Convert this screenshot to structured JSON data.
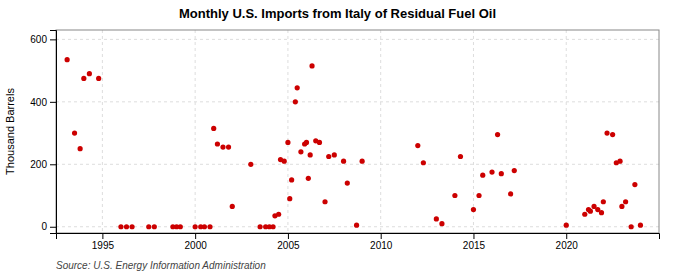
{
  "chart_data": {
    "type": "scatter",
    "title": "Monthly U.S. Imports from Italy of Residual Fuel Oil",
    "ylabel": "Thousand Barrels",
    "source": "Source: U.S. Energy Information Administration",
    "color": "#cc0000",
    "xlim": [
      1992.5,
      2025.0
    ],
    "ylim": [
      -20,
      630
    ],
    "xticks": [
      1995,
      2000,
      2005,
      2010,
      2015,
      2020
    ],
    "yticks": [
      0,
      200,
      400,
      600
    ],
    "grid": true,
    "x": [
      1993.1,
      1993.5,
      1993.8,
      1994.0,
      1994.3,
      1994.8,
      1996.0,
      1996.3,
      1996.6,
      1997.5,
      1997.8,
      1998.8,
      1999.0,
      1999.2,
      2000.0,
      2000.3,
      2000.5,
      2000.8,
      2001.0,
      2001.2,
      2001.5,
      2001.8,
      2002.0,
      2003.0,
      2003.5,
      2003.8,
      2004.0,
      2004.2,
      2004.3,
      2004.5,
      2004.6,
      2004.8,
      2005.0,
      2005.1,
      2005.2,
      2005.4,
      2005.5,
      2005.7,
      2005.9,
      2006.0,
      2006.1,
      2006.2,
      2006.3,
      2006.5,
      2006.7,
      2007.0,
      2007.2,
      2007.5,
      2008.0,
      2008.2,
      2008.7,
      2009.0,
      2012.0,
      2012.3,
      2013.0,
      2013.3,
      2014.0,
      2014.3,
      2015.0,
      2015.3,
      2015.5,
      2016.0,
      2016.3,
      2016.5,
      2017.0,
      2017.2,
      2020.0,
      2021.0,
      2021.2,
      2021.3,
      2021.5,
      2021.7,
      2021.9,
      2022.0,
      2022.2,
      2022.5,
      2022.7,
      2022.9,
      2023.0,
      2023.2,
      2023.5,
      2023.7,
      2024.0
    ],
    "values": [
      535,
      300,
      250,
      475,
      490,
      475,
      0,
      0,
      0,
      0,
      0,
      0,
      0,
      0,
      0,
      0,
      0,
      0,
      315,
      265,
      255,
      255,
      65,
      200,
      0,
      0,
      0,
      0,
      35,
      40,
      215,
      210,
      270,
      90,
      150,
      400,
      445,
      240,
      265,
      270,
      155,
      230,
      515,
      275,
      270,
      80,
      225,
      230,
      210,
      140,
      5,
      210,
      260,
      205,
      25,
      10,
      100,
      225,
      55,
      100,
      165,
      175,
      295,
      170,
      105,
      180,
      5,
      40,
      55,
      50,
      65,
      55,
      45,
      80,
      300,
      295,
      205,
      210,
      65,
      80,
      0,
      135,
      5
    ]
  }
}
